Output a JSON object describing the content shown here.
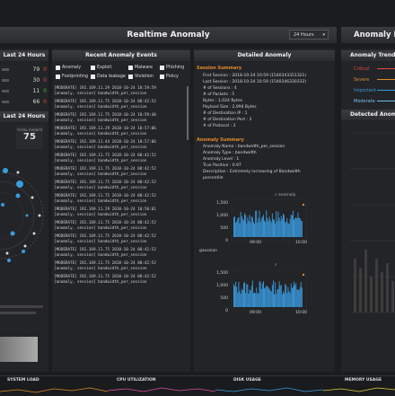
{
  "header": {
    "title": "Realtime Anomaly",
    "time_select": "24 Hours",
    "right_title": "Anomaly H"
  },
  "left": {
    "top_title": "Last 24 Hours",
    "counts": [
      {
        "value": "79",
        "delta": "0"
      },
      {
        "value": "30",
        "delta": "0"
      },
      {
        "value": "11",
        "delta": "0"
      },
      {
        "value": "66",
        "delta": "0"
      }
    ],
    "second_title": "Last 24 Hours",
    "total_label": "TOTAL EVENTS",
    "total_value": "75"
  },
  "recent": {
    "title": "Recent Anomaly Events",
    "filters": [
      "Anomaly",
      "Exploit",
      "Malware",
      "Phishing",
      "Footprinting",
      "Data leakage",
      "Violation",
      "Policy"
    ],
    "events": [
      {
        "line1": "[MODERATE] 192.169.11.29      2018-10-24 10:59:59",
        "line2": "[anomaly, session] bandwidth_per_session"
      },
      {
        "line1": "[MODERATE] 192.169.11.75      2018-10-24 08:42:52",
        "line2": "[anomaly, session] bandwidth_per_session"
      },
      {
        "line1": "[MODERATE] 192.169.11.75      2018-10-24 10:59:48",
        "line2": "[anomaly, session] bandwidth_per_session"
      },
      {
        "line1": "[MODERATE] 192.169.11.29      2018-10-24 10:57:06",
        "line2": "[anomaly, session] bandwidth_per_session"
      },
      {
        "line1": "[MODERATE] 192.169.11.44      2018-10-24 10:57:06",
        "line2": "[anomaly, session] bandwidth_per_session"
      },
      {
        "line1": "[MODERATE] 192.169.11.75      2018-10-24 08:42:52",
        "line2": "[anomaly, session] bandwidth_per_session"
      },
      {
        "line1": "[MODERATE] 192.169.11.75      2018-10-24 08:42:52",
        "line2": "[anomaly, session] bandwidth_per_session"
      },
      {
        "line1": "[MODERATE] 192.169.11.75      2018-10-24 08:42:52",
        "line2": "[anomaly, session] bandwidth_per_session"
      },
      {
        "line1": "[MODERATE] 192.169.11.75      2018-10-24 08:42:52",
        "line2": "[anomaly, session] bandwidth_per_session"
      },
      {
        "line1": "[MODERATE] 192.169.11.29      2018-10-24 10:50:01",
        "line2": "[anomaly, session] bandwidth_per_session"
      },
      {
        "line1": "[MODERATE] 192.169.11.75      2018-10-24 08:42:52",
        "line2": "[anomaly, session] bandwidth_per_session"
      },
      {
        "line1": "[MODERATE] 192.169.11.75      2018-10-24 08:42:52",
        "line2": "[anomaly, session] bandwidth_per_session"
      },
      {
        "line1": "[MODERATE] 192.169.11.75      2018-10-24 08:42:52",
        "line2": "[anomaly, session] bandwidth_per_session"
      },
      {
        "line1": "[MODERATE] 192.169.11.75      2018-10-24 08:42:52",
        "line2": "[anomaly, session] bandwidth_per_session"
      },
      {
        "line1": "[MODERATE] 192.169.11.75      2018-10-24 08:42:52",
        "line2": "[anomaly, session] bandwidth_per_session"
      }
    ]
  },
  "detailed": {
    "title": "Detailed Anomaly",
    "session_summary_label": "Session Summary",
    "session": [
      "First Session : 2018-10-24 10:59 (1540343351321)",
      "Last Session : 2018-10-24 10:59 (1540346330332)",
      "# of Sessions : 4",
      "# of Packets : 5",
      "Bytes : 1,024 Bytes",
      "Payload Size : 2,994 Bytes",
      "# of Destination IP : 1",
      "# of Destination Port : 3",
      "# of Protocol : 3"
    ],
    "anomaly_summary_label": "Anomaly Summary",
    "anomaly": [
      "Anomaly Name : bandwidth_per_session",
      "Anomaly Type : bandwidth",
      "Anomaly Level : 1",
      "True Positive : 0.97",
      "Description : Extremely increasing of Bandwidth",
      "percentile"
    ],
    "chart1": {
      "label": "anomaly",
      "yticks": [
        "1,500",
        "1,000",
        "500",
        "0"
      ],
      "xticks": [
        "09:00",
        "10:00"
      ]
    },
    "chart2": {
      "label": "gaussian",
      "yticks": [
        "1,500",
        "1,000",
        "500",
        "0"
      ],
      "xticks": [
        "09:00",
        "10:00"
      ]
    }
  },
  "right": {
    "trend_title": "Anomaly Trend",
    "legend": [
      {
        "label": "Critical",
        "color": "#e04a3a"
      },
      {
        "label": "Severe",
        "color": "#e08a2a"
      },
      {
        "label": "Important",
        "color": "#3a9be0"
      },
      {
        "label": "Moderate",
        "color": "#6fc0e8"
      }
    ],
    "detected_title": "Detected Anoma"
  },
  "footer": {
    "labels": [
      "SYSTEM LOAD",
      "CPU UTILIZATION",
      "DISK USAGE",
      "MEMORY USAGE"
    ]
  },
  "colors": {
    "accent": "#e08a2a",
    "chart_blue": "#3a9be0",
    "bg": "#1b1c1e"
  }
}
